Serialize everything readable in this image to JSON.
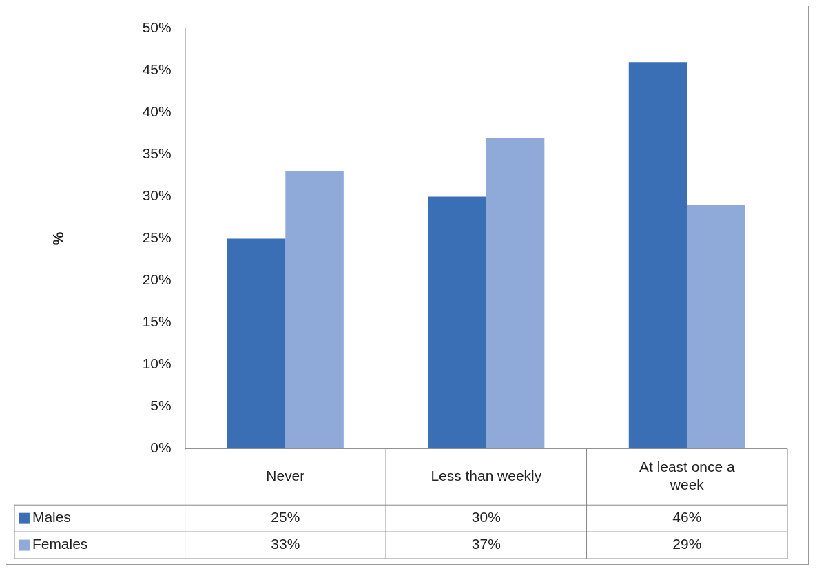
{
  "chart_data": {
    "type": "bar",
    "ylabel": "%",
    "categories": [
      "Never",
      "Less than weekly",
      "At least once a week"
    ],
    "series": [
      {
        "name": "Males",
        "color": "#3a6eb5",
        "values": [
          25,
          30,
          46
        ],
        "value_labels": [
          "25%",
          "30%",
          "46%"
        ]
      },
      {
        "name": "Females",
        "color": "#8faad8",
        "values": [
          33,
          37,
          29
        ],
        "value_labels": [
          "33%",
          "37%",
          "29%"
        ]
      }
    ],
    "ylim": [
      0,
      50
    ],
    "yticks": [
      {
        "value": 0,
        "label": "0%"
      },
      {
        "value": 5,
        "label": "5%"
      },
      {
        "value": 10,
        "label": "10%"
      },
      {
        "value": 15,
        "label": "15%"
      },
      {
        "value": 20,
        "label": "20%"
      },
      {
        "value": 25,
        "label": "25%"
      },
      {
        "value": 30,
        "label": "30%"
      },
      {
        "value": 35,
        "label": "35%"
      },
      {
        "value": 40,
        "label": "40%"
      },
      {
        "value": 45,
        "label": "45%"
      },
      {
        "value": 50,
        "label": "50%"
      }
    ],
    "legend": "bottom"
  }
}
